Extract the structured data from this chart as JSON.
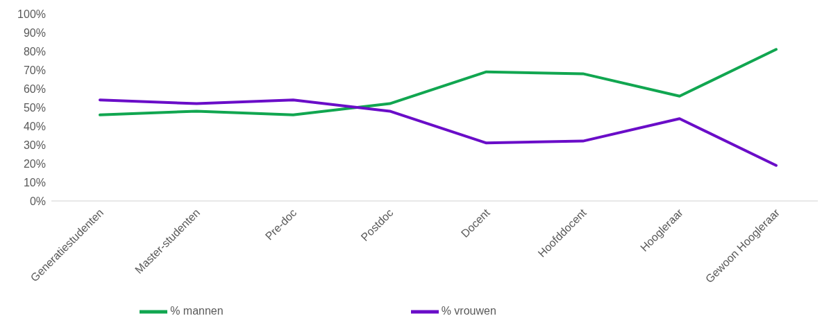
{
  "chart_data": {
    "type": "line",
    "categories": [
      "Generatiestudenten",
      "Master-studenten",
      "Pre-doc",
      "Postdoc",
      "Docent",
      "Hoofddocent",
      "Hoogleraar",
      "Gewoon Hoogleraar"
    ],
    "series": [
      {
        "name": "% mannen",
        "color": "#11a650",
        "values": [
          46,
          48,
          46,
          52,
          69,
          68,
          56,
          81
        ]
      },
      {
        "name": "% vrouwen",
        "color": "#6a0dc8",
        "values": [
          54,
          52,
          54,
          48,
          31,
          32,
          44,
          19
        ]
      }
    ],
    "ylim": [
      0,
      100
    ],
    "yticks": [
      {
        "value": 0,
        "label": "0%"
      },
      {
        "value": 10,
        "label": "10%"
      },
      {
        "value": 20,
        "label": "20%"
      },
      {
        "value": 30,
        "label": "30%"
      },
      {
        "value": 40,
        "label": "40%"
      },
      {
        "value": 50,
        "label": "50%"
      },
      {
        "value": 60,
        "label": "60%"
      },
      {
        "value": 70,
        "label": "70%"
      },
      {
        "value": 80,
        "label": "80%"
      },
      {
        "value": 90,
        "label": "90%"
      },
      {
        "value": 100,
        "label": "100%"
      }
    ],
    "grid": false,
    "legend": "bottom",
    "marker": "none",
    "line_style": "solid"
  }
}
